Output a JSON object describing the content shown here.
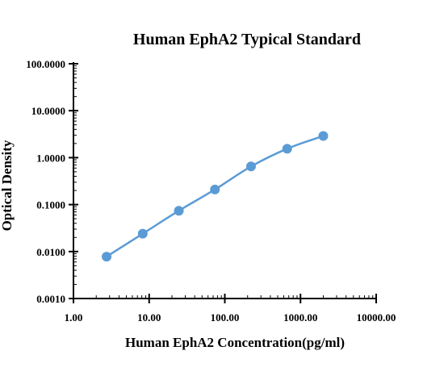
{
  "chart_data": {
    "type": "line",
    "title": "Human EphA2 Typical Standard",
    "xlabel": "Human EphA2 Concentration(pg/ml)",
    "ylabel": "Optical Density",
    "x_scale": "log",
    "y_scale": "log",
    "xlim": [
      1,
      10000
    ],
    "ylim": [
      0.001,
      100
    ],
    "x_ticks": [
      "1.00",
      "10.00",
      "100.00",
      "1000.00",
      "10000.00"
    ],
    "y_ticks": [
      "0.0010",
      "0.0100",
      "0.1000",
      "1.0000",
      "10.0000",
      "100.0000"
    ],
    "grid": false,
    "legend": "none",
    "series": [
      {
        "color": "#5b9bd5",
        "x": [
          2.74,
          8.23,
          24.69,
          74.07,
          222.2,
          666.7,
          2000
        ],
        "y": [
          0.0078,
          0.024,
          0.074,
          0.21,
          0.65,
          1.55,
          2.9
        ]
      }
    ]
  }
}
